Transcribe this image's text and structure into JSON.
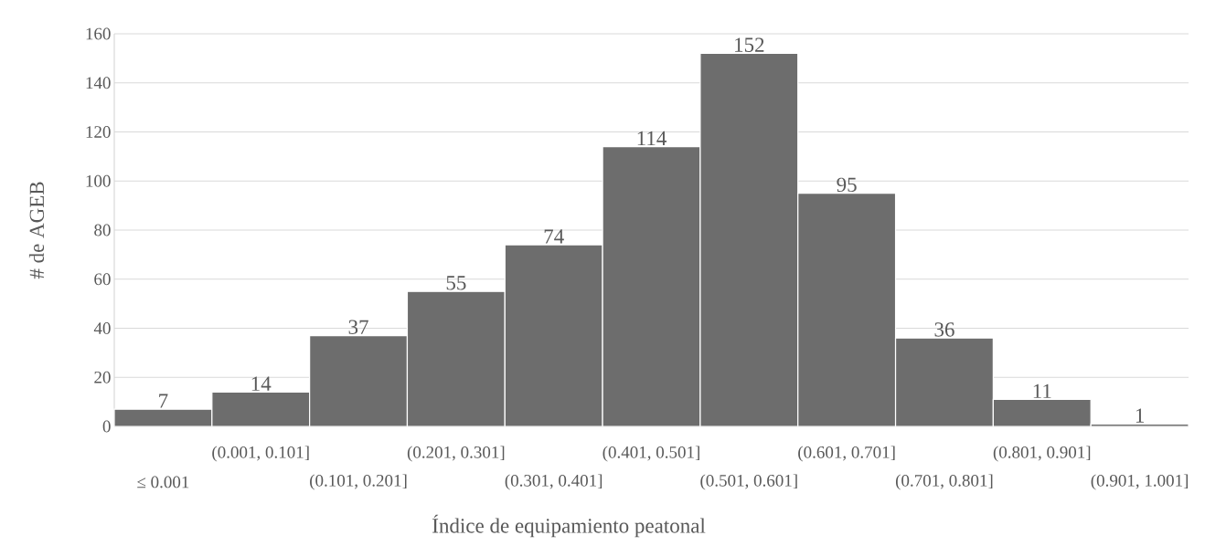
{
  "chart_data": {
    "type": "bar",
    "xlabel": "Índice de equipamiento peatonal",
    "ylabel": "# de AGEB",
    "categories": [
      "≤ 0.001",
      "(0.001, 0.101]",
      "(0.101, 0.201]",
      "(0.201, 0.301]",
      "(0.301, 0.401]",
      "(0.401, 0.501]",
      "(0.501, 0.601]",
      "(0.601, 0.701]",
      "(0.701, 0.801]",
      "(0.801, 0.901]",
      "(0.901, 1.001]"
    ],
    "values": [
      7,
      14,
      37,
      55,
      74,
      114,
      152,
      95,
      36,
      11,
      1
    ],
    "color": "#6d6d6d",
    "ylim": [
      0,
      160
    ],
    "yticks": [
      0,
      20,
      40,
      60,
      80,
      100,
      120,
      140,
      160
    ],
    "grid": "y",
    "data_labels": true
  }
}
